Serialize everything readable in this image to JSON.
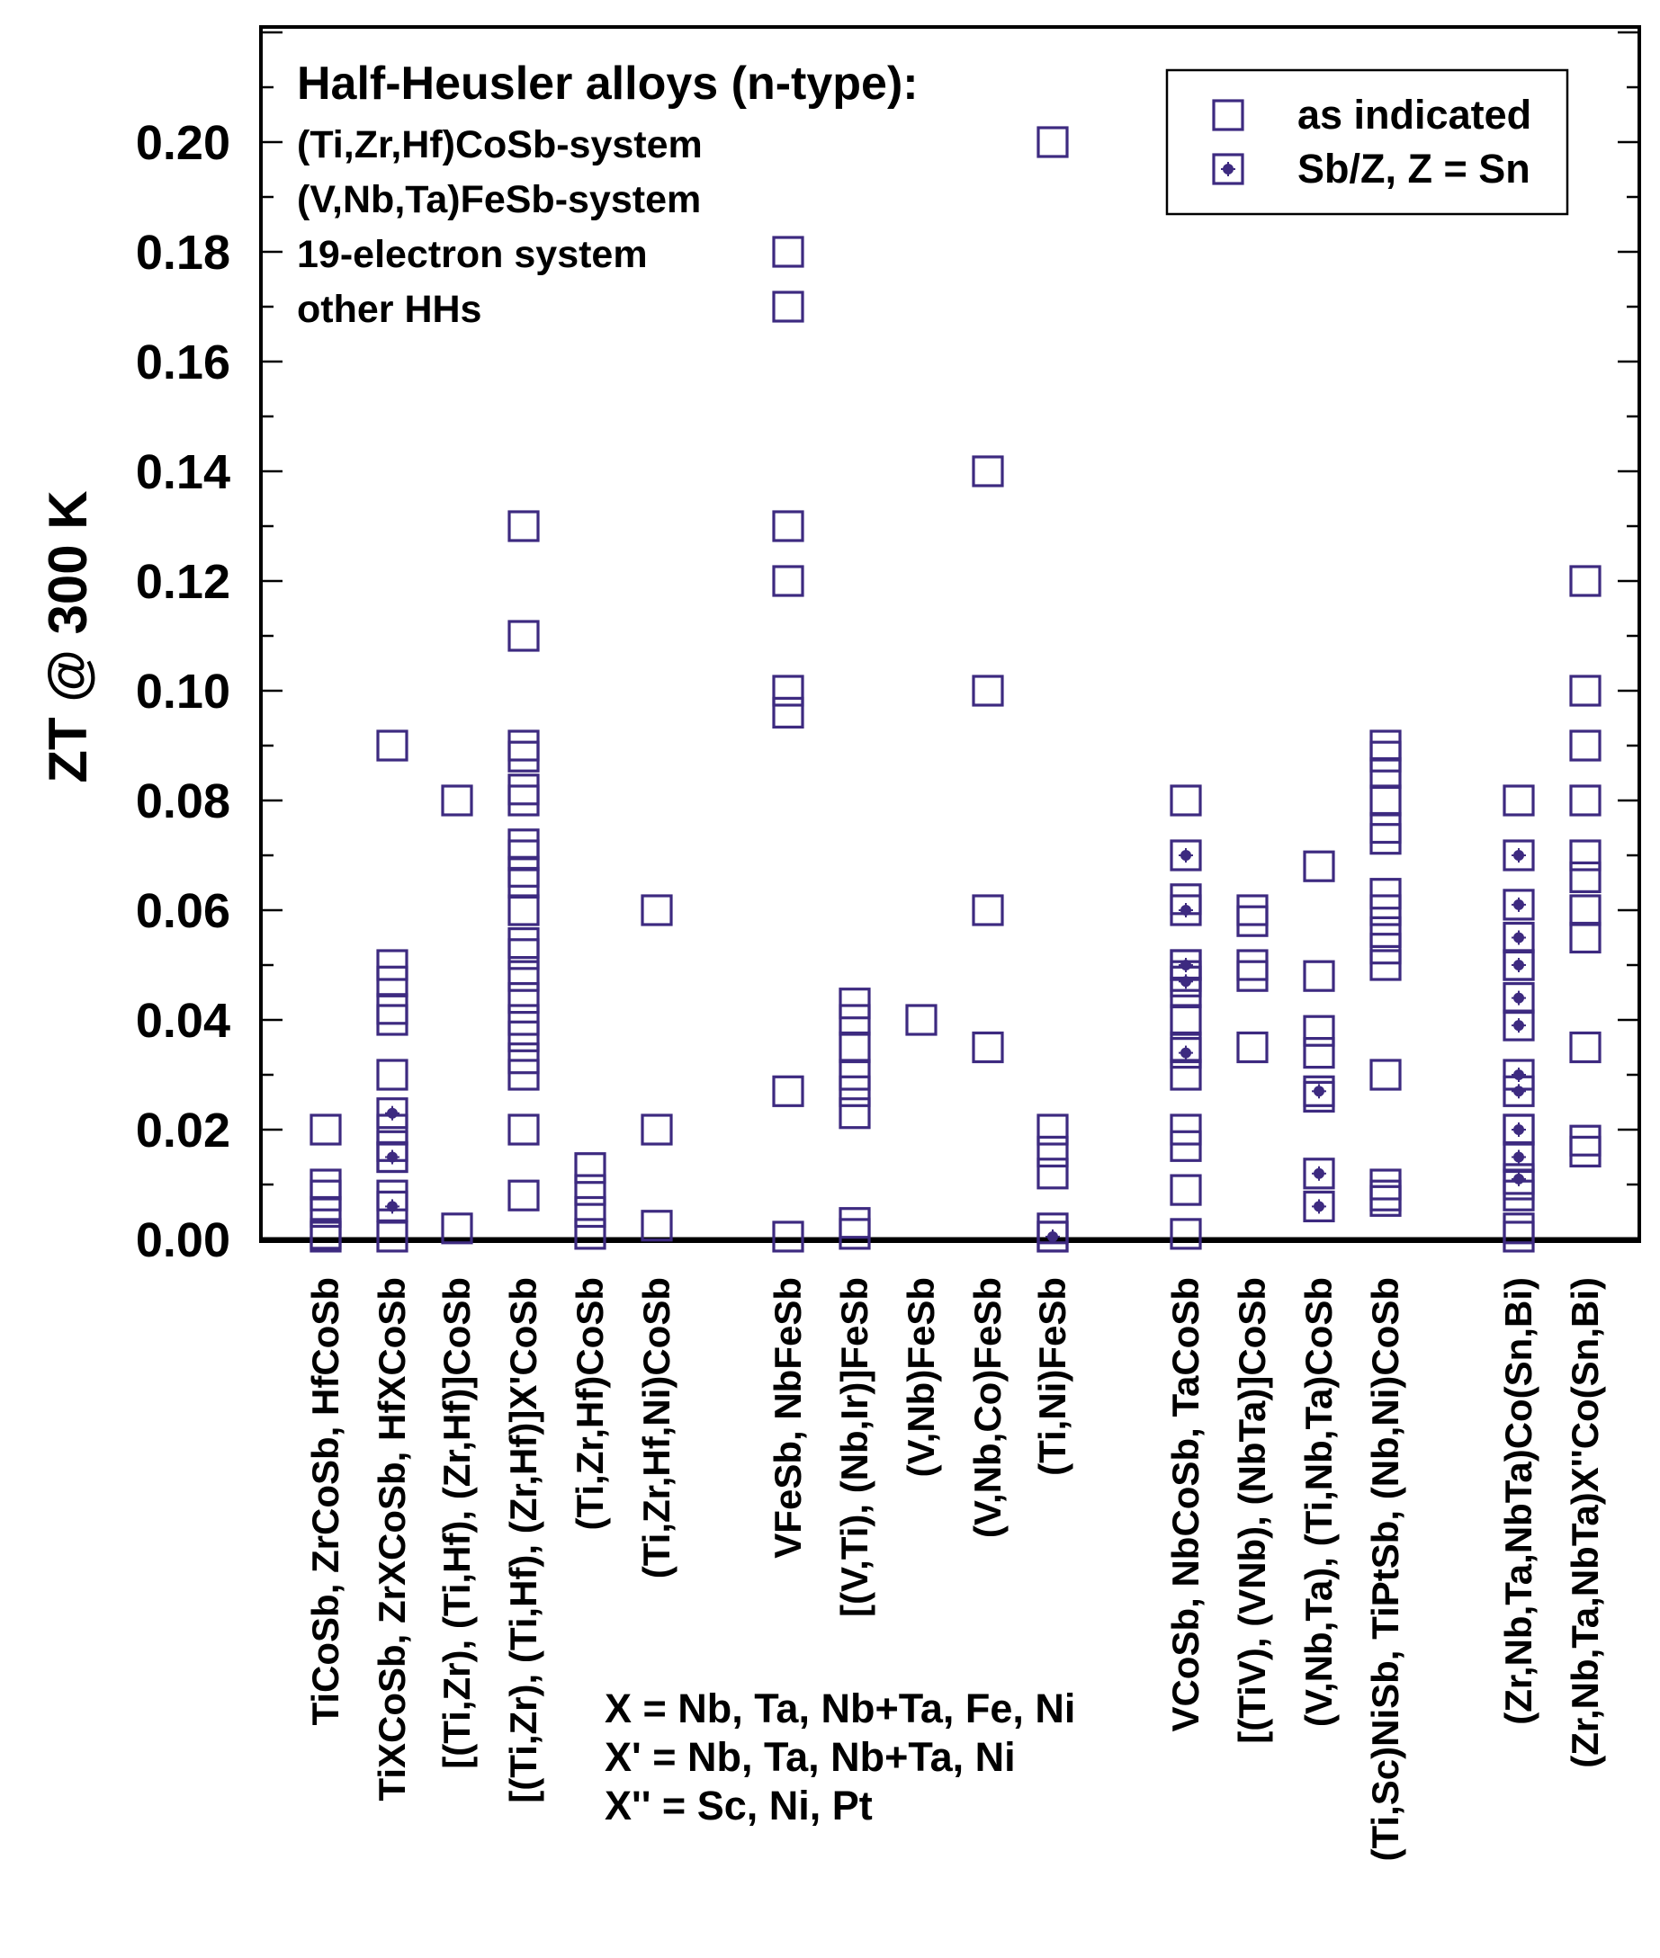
{
  "chart_data": {
    "type": "scatter",
    "title": "Half-Heusler alloys (n-type):",
    "subtitle_lines": [
      "(Ti,Zr,Hf)CoSb-system",
      "(V,Nb,Ta)FeSb-system",
      "19-electron system",
      "other HHs"
    ],
    "ylabel": "ZT @ 300 K",
    "ylim": [
      0,
      0.22
    ],
    "y_ticks": [
      0.0,
      0.02,
      0.04,
      0.06,
      0.08,
      0.1,
      0.12,
      0.14,
      0.16,
      0.18,
      0.2
    ],
    "y_tick_labels": [
      "0.00",
      "0.02",
      "0.04",
      "0.06",
      "0.08",
      "0.10",
      "0.12",
      "0.14",
      "0.16",
      "0.18",
      "0.20"
    ],
    "legend": {
      "placement": "top-right",
      "entries": [
        {
          "marker": "open-square",
          "label": "as indicated"
        },
        {
          "marker": "dotted-square",
          "label": "Sb/Z, Z = Sn"
        }
      ]
    },
    "marker_color": "#3d2a80",
    "categories": [
      "TiCoSb, ZrCoSb, HfCoSb",
      "TiXCoSb, ZrXCoSb, HfXCoSb",
      "[(Ti,Zr), (Ti,Hf), (Zr,Hf)]CoSb",
      "[(Ti,Zr), (Ti,Hf), (Zr,Hf)]X'CoSb",
      "(Ti,Zr,Hf)CoSb",
      "(Ti,Zr,Hf,Ni)CoSb",
      "VFeSb, NbFeSb",
      "[(V,Ti), (Nb,Ir)]FeSb",
      "(V,Nb)FeSb",
      "(V,Nb,Co)FeSb",
      "(Ti,Ni)FeSb",
      "VCoSb, NbCoSb, TaCoSb",
      "[(TiV), (VNb), (NbTa)]CoSb",
      "(V,Nb,Ta), (Ti,Nb,Ta)CoSb",
      "(Ti,Sc)NiSb, TiPtSb, (Nb,Ni)CoSb",
      "(Zr,Nb,Ta,NbTa)Co(Sn,Bi)",
      "(Zr,Nb,Ta,NbTa)X''Co(Sn,Bi)"
    ],
    "series": [
      {
        "name": "as indicated",
        "marker": "open-square",
        "points": [
          {
            "x": 1,
            "y": 0.02
          },
          {
            "x": 1,
            "y": 0.01
          },
          {
            "x": 1,
            "y": 0.008
          },
          {
            "x": 1,
            "y": 0.005
          },
          {
            "x": 1,
            "y": 0.001
          },
          {
            "x": 1,
            "y": 0.0005
          },
          {
            "x": 2,
            "y": 0.09
          },
          {
            "x": 2,
            "y": 0.05
          },
          {
            "x": 2,
            "y": 0.047
          },
          {
            "x": 2,
            "y": 0.042
          },
          {
            "x": 2,
            "y": 0.04
          },
          {
            "x": 2,
            "y": 0.03
          },
          {
            "x": 2,
            "y": 0.02
          },
          {
            "x": 2,
            "y": 0.017
          },
          {
            "x": 2,
            "y": 0.015
          },
          {
            "x": 2,
            "y": 0.008
          },
          {
            "x": 2,
            "y": 0.0005
          },
          {
            "x": 3,
            "y": 0.08
          },
          {
            "x": 3,
            "y": 0.002
          },
          {
            "x": 4,
            "y": 0.13
          },
          {
            "x": 4,
            "y": 0.11
          },
          {
            "x": 4,
            "y": 0.09
          },
          {
            "x": 4,
            "y": 0.088
          },
          {
            "x": 4,
            "y": 0.082
          },
          {
            "x": 4,
            "y": 0.08
          },
          {
            "x": 4,
            "y": 0.072
          },
          {
            "x": 4,
            "y": 0.07
          },
          {
            "x": 4,
            "y": 0.067
          },
          {
            "x": 4,
            "y": 0.065
          },
          {
            "x": 4,
            "y": 0.06
          },
          {
            "x": 4,
            "y": 0.054
          },
          {
            "x": 4,
            "y": 0.052
          },
          {
            "x": 4,
            "y": 0.048
          },
          {
            "x": 4,
            "y": 0.044
          },
          {
            "x": 4,
            "y": 0.04
          },
          {
            "x": 4,
            "y": 0.037
          },
          {
            "x": 4,
            "y": 0.033
          },
          {
            "x": 4,
            "y": 0.03
          },
          {
            "x": 4,
            "y": 0.02
          },
          {
            "x": 4,
            "y": 0.008
          },
          {
            "x": 5,
            "y": 0.013
          },
          {
            "x": 5,
            "y": 0.009
          },
          {
            "x": 5,
            "y": 0.005
          },
          {
            "x": 5,
            "y": 0.001
          },
          {
            "x": 6,
            "y": 0.06
          },
          {
            "x": 6,
            "y": 0.02
          },
          {
            "x": 6,
            "y": 0.0025
          },
          {
            "x": 7,
            "y": 0.18
          },
          {
            "x": 7,
            "y": 0.17
          },
          {
            "x": 7,
            "y": 0.13
          },
          {
            "x": 7,
            "y": 0.12
          },
          {
            "x": 7,
            "y": 0.1
          },
          {
            "x": 7,
            "y": 0.096
          },
          {
            "x": 7,
            "y": 0.027
          },
          {
            "x": 7,
            "y": 0.0005
          },
          {
            "x": 8,
            "y": 0.043
          },
          {
            "x": 8,
            "y": 0.04
          },
          {
            "x": 8,
            "y": 0.035
          },
          {
            "x": 8,
            "y": 0.03
          },
          {
            "x": 8,
            "y": 0.027
          },
          {
            "x": 8,
            "y": 0.023
          },
          {
            "x": 8,
            "y": 0.003
          },
          {
            "x": 8,
            "y": 0.001
          },
          {
            "x": 9,
            "y": 0.04
          },
          {
            "x": 10,
            "y": 0.14
          },
          {
            "x": 10,
            "y": 0.1
          },
          {
            "x": 10,
            "y": 0.06
          },
          {
            "x": 10,
            "y": 0.035
          },
          {
            "x": 11,
            "y": 0.2
          },
          {
            "x": 11,
            "y": 0.02
          },
          {
            "x": 11,
            "y": 0.016
          },
          {
            "x": 11,
            "y": 0.012
          },
          {
            "x": 11,
            "y": 0.002
          },
          {
            "x": 11,
            "y": 0.0005
          },
          {
            "x": 12,
            "y": 0.08
          },
          {
            "x": 12,
            "y": 0.062
          },
          {
            "x": 12,
            "y": 0.05
          },
          {
            "x": 12,
            "y": 0.048
          },
          {
            "x": 12,
            "y": 0.045
          },
          {
            "x": 12,
            "y": 0.04
          },
          {
            "x": 12,
            "y": 0.035
          },
          {
            "x": 12,
            "y": 0.03
          },
          {
            "x": 12,
            "y": 0.02
          },
          {
            "x": 12,
            "y": 0.017
          },
          {
            "x": 12,
            "y": 0.009
          },
          {
            "x": 12,
            "y": 0.001
          },
          {
            "x": 13,
            "y": 0.06
          },
          {
            "x": 13,
            "y": 0.058
          },
          {
            "x": 13,
            "y": 0.05
          },
          {
            "x": 13,
            "y": 0.048
          },
          {
            "x": 13,
            "y": 0.035
          },
          {
            "x": 14,
            "y": 0.068
          },
          {
            "x": 14,
            "y": 0.048
          },
          {
            "x": 14,
            "y": 0.038
          },
          {
            "x": 14,
            "y": 0.034
          },
          {
            "x": 14,
            "y": 0.026
          },
          {
            "x": 15,
            "y": 0.09
          },
          {
            "x": 15,
            "y": 0.088
          },
          {
            "x": 15,
            "y": 0.085
          },
          {
            "x": 15,
            "y": 0.08
          },
          {
            "x": 15,
            "y": 0.075
          },
          {
            "x": 15,
            "y": 0.073
          },
          {
            "x": 15,
            "y": 0.063
          },
          {
            "x": 15,
            "y": 0.06
          },
          {
            "x": 15,
            "y": 0.056
          },
          {
            "x": 15,
            "y": 0.053
          },
          {
            "x": 15,
            "y": 0.05
          },
          {
            "x": 15,
            "y": 0.03
          },
          {
            "x": 15,
            "y": 0.01
          },
          {
            "x": 15,
            "y": 0.008
          },
          {
            "x": 15,
            "y": 0.007
          },
          {
            "x": 16,
            "y": 0.08
          },
          {
            "x": 16,
            "y": 0.05
          },
          {
            "x": 16,
            "y": 0.02
          },
          {
            "x": 16,
            "y": 0.01
          },
          {
            "x": 16,
            "y": 0.008
          },
          {
            "x": 16,
            "y": 0.002
          },
          {
            "x": 16,
            "y": 0.0005
          },
          {
            "x": 17,
            "y": 0.12
          },
          {
            "x": 17,
            "y": 0.1
          },
          {
            "x": 17,
            "y": 0.09
          },
          {
            "x": 17,
            "y": 0.08
          },
          {
            "x": 17,
            "y": 0.07
          },
          {
            "x": 17,
            "y": 0.066
          },
          {
            "x": 17,
            "y": 0.06
          },
          {
            "x": 17,
            "y": 0.055
          },
          {
            "x": 17,
            "y": 0.035
          },
          {
            "x": 17,
            "y": 0.018
          },
          {
            "x": 17,
            "y": 0.016
          }
        ]
      },
      {
        "name": "Sb/Z, Z = Sn",
        "marker": "dotted-square",
        "points": [
          {
            "x": 2,
            "y": 0.023
          },
          {
            "x": 2,
            "y": 0.015
          },
          {
            "x": 2,
            "y": 0.006
          },
          {
            "x": 11,
            "y": 0.0005
          },
          {
            "x": 12,
            "y": 0.07
          },
          {
            "x": 12,
            "y": 0.06
          },
          {
            "x": 12,
            "y": 0.05
          },
          {
            "x": 12,
            "y": 0.047
          },
          {
            "x": 12,
            "y": 0.034
          },
          {
            "x": 14,
            "y": 0.027
          },
          {
            "x": 14,
            "y": 0.012
          },
          {
            "x": 14,
            "y": 0.006
          },
          {
            "x": 16,
            "y": 0.07
          },
          {
            "x": 16,
            "y": 0.061
          },
          {
            "x": 16,
            "y": 0.055
          },
          {
            "x": 16,
            "y": 0.05
          },
          {
            "x": 16,
            "y": 0.044
          },
          {
            "x": 16,
            "y": 0.039
          },
          {
            "x": 16,
            "y": 0.03
          },
          {
            "x": 16,
            "y": 0.027
          },
          {
            "x": 16,
            "y": 0.02
          },
          {
            "x": 16,
            "y": 0.015
          },
          {
            "x": 16,
            "y": 0.011
          }
        ]
      }
    ],
    "annotation_lines": [
      "X = Nb, Ta, Nb+Ta, Fe, Ni",
      "X' =  Nb, Ta, Nb+Ta, Ni",
      "X'' = Sc, Ni, Pt"
    ]
  }
}
